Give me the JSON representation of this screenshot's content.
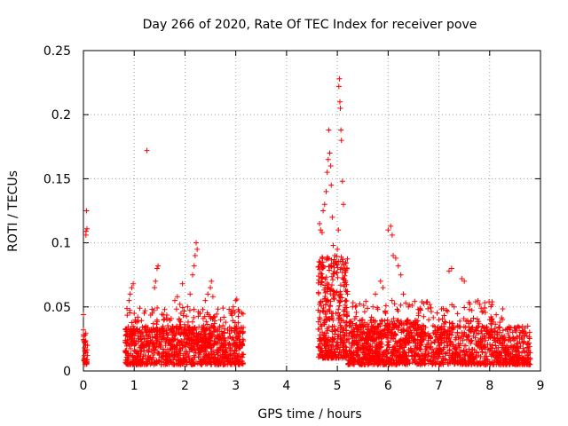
{
  "chart_data": {
    "type": "scatter",
    "title": "Day 266 of 2020, Rate Of TEC Index for receiver pove",
    "xlabel": "GPS time / hours",
    "ylabel": "ROTI / TECUs",
    "xlim": [
      0,
      9
    ],
    "ylim": [
      0,
      0.25
    ],
    "xticks": [
      0,
      1,
      2,
      3,
      4,
      5,
      6,
      7,
      8,
      9
    ],
    "xtick_labels": [
      "0",
      "1",
      "2",
      "3",
      "4",
      "5",
      "6",
      "7",
      "8",
      "9"
    ],
    "yticks": [
      0,
      0.05,
      0.1,
      0.15,
      0.2,
      0.25
    ],
    "ytick_labels": [
      "0",
      "0.05",
      "0.1",
      "0.15",
      "0.2",
      "0.25"
    ],
    "grid": true,
    "marker": "+",
    "color": "#ff0000",
    "series": [
      {
        "name": "ROTI",
        "points": [
          [
            0.0,
            0.044
          ],
          [
            0.0,
            0.032
          ],
          [
            0.02,
            0.018
          ],
          [
            0.02,
            0.01
          ],
          [
            0.03,
            0.028
          ],
          [
            0.04,
            0.015
          ],
          [
            0.05,
            0.106
          ],
          [
            0.05,
            0.109
          ],
          [
            0.06,
            0.125
          ],
          [
            0.07,
            0.111
          ],
          [
            0.08,
            0.012
          ],
          [
            0.08,
            0.02
          ],
          [
            0.9,
            0.055
          ],
          [
            0.92,
            0.06
          ],
          [
            0.95,
            0.065
          ],
          [
            0.98,
            0.068
          ],
          [
            1.0,
            0.045
          ],
          [
            1.02,
            0.04
          ],
          [
            1.05,
            0.038
          ],
          [
            1.07,
            0.042
          ],
          [
            1.25,
            0.172
          ],
          [
            1.4,
            0.065
          ],
          [
            1.42,
            0.07
          ],
          [
            1.45,
            0.08
          ],
          [
            1.47,
            0.082
          ],
          [
            1.6,
            0.048
          ],
          [
            1.8,
            0.055
          ],
          [
            1.85,
            0.058
          ],
          [
            1.9,
            0.052
          ],
          [
            1.95,
            0.068
          ],
          [
            2.05,
            0.05
          ],
          [
            2.1,
            0.06
          ],
          [
            2.15,
            0.075
          ],
          [
            2.18,
            0.082
          ],
          [
            2.2,
            0.09
          ],
          [
            2.22,
            0.1
          ],
          [
            2.24,
            0.095
          ],
          [
            2.3,
            0.045
          ],
          [
            2.35,
            0.048
          ],
          [
            2.4,
            0.055
          ],
          [
            2.45,
            0.06
          ],
          [
            2.5,
            0.065
          ],
          [
            2.52,
            0.07
          ],
          [
            2.55,
            0.058
          ],
          [
            2.7,
            0.04
          ],
          [
            2.8,
            0.038
          ],
          [
            2.9,
            0.045
          ],
          [
            2.95,
            0.05
          ],
          [
            3.0,
            0.055
          ],
          [
            3.02,
            0.056
          ],
          [
            3.05,
            0.048
          ],
          [
            4.65,
            0.115
          ],
          [
            4.67,
            0.11
          ],
          [
            4.7,
            0.108
          ],
          [
            4.72,
            0.125
          ],
          [
            4.75,
            0.13
          ],
          [
            4.78,
            0.14
          ],
          [
            4.8,
            0.155
          ],
          [
            4.82,
            0.165
          ],
          [
            4.83,
            0.188
          ],
          [
            4.85,
            0.17
          ],
          [
            4.87,
            0.16
          ],
          [
            4.88,
            0.145
          ],
          [
            4.9,
            0.12
          ],
          [
            4.92,
            0.098
          ],
          [
            4.95,
            0.09
          ],
          [
            4.97,
            0.085
          ],
          [
            5.0,
            0.095
          ],
          [
            5.02,
            0.11
          ],
          [
            5.03,
            0.222
          ],
          [
            5.04,
            0.228
          ],
          [
            5.05,
            0.21
          ],
          [
            5.06,
            0.205
          ],
          [
            5.07,
            0.188
          ],
          [
            5.08,
            0.18
          ],
          [
            5.1,
            0.148
          ],
          [
            5.12,
            0.13
          ],
          [
            5.15,
            0.08
          ],
          [
            5.2,
            0.06
          ],
          [
            5.3,
            0.05
          ],
          [
            5.5,
            0.04
          ],
          [
            5.7,
            0.05
          ],
          [
            5.75,
            0.06
          ],
          [
            5.85,
            0.07
          ],
          [
            5.9,
            0.065
          ],
          [
            5.95,
            0.045
          ],
          [
            6.0,
            0.11
          ],
          [
            6.05,
            0.113
          ],
          [
            6.08,
            0.106
          ],
          [
            6.1,
            0.09
          ],
          [
            6.15,
            0.088
          ],
          [
            6.2,
            0.082
          ],
          [
            6.25,
            0.075
          ],
          [
            6.3,
            0.06
          ],
          [
            6.4,
            0.05
          ],
          [
            6.6,
            0.045
          ],
          [
            6.8,
            0.04
          ],
          [
            7.0,
            0.04
          ],
          [
            7.2,
            0.078
          ],
          [
            7.25,
            0.08
          ],
          [
            7.3,
            0.05
          ],
          [
            7.45,
            0.072
          ],
          [
            7.5,
            0.07
          ],
          [
            7.6,
            0.048
          ],
          [
            7.8,
            0.052
          ],
          [
            7.85,
            0.046
          ],
          [
            8.0,
            0.04
          ],
          [
            8.2,
            0.038
          ],
          [
            8.4,
            0.032
          ],
          [
            8.6,
            0.03
          ],
          [
            8.75,
            0.035
          ]
        ],
        "dense_clusters": [
          {
            "x_start": 0.0,
            "x_end": 0.1,
            "y_low": 0.005,
            "y_high": 0.03,
            "count": 30
          },
          {
            "x_start": 0.82,
            "x_end": 3.15,
            "y_low": 0.005,
            "y_high": 0.035,
            "count": 900
          },
          {
            "x_start": 0.85,
            "x_end": 3.15,
            "y_low": 0.02,
            "y_high": 0.05,
            "count": 260
          },
          {
            "x_start": 4.62,
            "x_end": 5.2,
            "y_low": 0.01,
            "y_high": 0.09,
            "count": 420
          },
          {
            "x_start": 5.2,
            "x_end": 6.6,
            "y_low": 0.005,
            "y_high": 0.04,
            "count": 700
          },
          {
            "x_start": 6.6,
            "x_end": 8.8,
            "y_low": 0.005,
            "y_high": 0.035,
            "count": 800
          },
          {
            "x_start": 5.3,
            "x_end": 8.3,
            "y_low": 0.025,
            "y_high": 0.055,
            "count": 220
          }
        ]
      }
    ]
  }
}
